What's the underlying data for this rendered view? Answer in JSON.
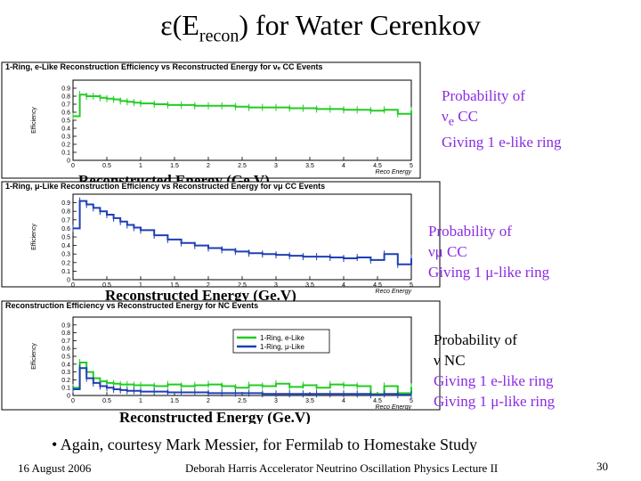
{
  "title": {
    "prefix": "ε(E",
    "sub": "recon",
    "suffix": ") for Water Cerenkov"
  },
  "chart_data": [
    {
      "type": "line",
      "title": "1-Ring, e-Like Reconstruction Efficiency vs Reconstructed Energy for νₑ CC Events",
      "ylabel": "Efficiency",
      "xlabel_small": "Reco Energy",
      "xlabel_big": "Reconstructed Energy (Ge.V)",
      "xlim": [
        0,
        5
      ],
      "ylim": [
        0,
        1
      ],
      "xticks": [
        "0",
        "0.5",
        "1",
        "1.5",
        "2",
        "2.5",
        "3",
        "3.5",
        "4",
        "4.5",
        "5"
      ],
      "yticks": [
        "0",
        "0.1",
        "0.2",
        "0.3",
        "0.4",
        "0.5",
        "0.6",
        "0.7",
        "0.8",
        "0.9"
      ],
      "series": [
        {
          "color": "#22cc22",
          "x": [
            0,
            0.1,
            0.2,
            0.3,
            0.4,
            0.5,
            0.6,
            0.7,
            0.8,
            0.9,
            1.0,
            1.2,
            1.4,
            1.6,
            1.8,
            2.0,
            2.2,
            2.4,
            2.6,
            2.8,
            3.0,
            3.2,
            3.4,
            3.6,
            3.8,
            4.0,
            4.2,
            4.4,
            4.6,
            4.8,
            5.0
          ],
          "y": [
            0.55,
            0.82,
            0.8,
            0.8,
            0.78,
            0.77,
            0.76,
            0.74,
            0.73,
            0.72,
            0.71,
            0.7,
            0.69,
            0.69,
            0.68,
            0.68,
            0.68,
            0.67,
            0.66,
            0.66,
            0.66,
            0.65,
            0.65,
            0.64,
            0.64,
            0.63,
            0.63,
            0.62,
            0.63,
            0.58,
            0.62
          ]
        }
      ]
    },
    {
      "type": "line",
      "title": "1-Ring, μ-Like Reconstruction Efficiency vs Reconstructed Energy for νμ CC Events",
      "ylabel": "Efficiency",
      "xlabel_small": "Reco Energy",
      "xlabel_big": "Reconstructed Energy (Ge.V)",
      "xlim": [
        0,
        5
      ],
      "ylim": [
        0,
        1
      ],
      "xticks": [
        "0",
        "0.5",
        "1",
        "1.5",
        "2",
        "2.5",
        "3",
        "3.5",
        "4",
        "4.5",
        "5"
      ],
      "yticks": [
        "0",
        "0.1",
        "0.2",
        "0.3",
        "0.4",
        "0.5",
        "0.6",
        "0.7",
        "0.8",
        "0.9"
      ],
      "series": [
        {
          "color": "#1f3fb5",
          "x": [
            0,
            0.1,
            0.2,
            0.3,
            0.4,
            0.5,
            0.6,
            0.7,
            0.8,
            0.9,
            1.0,
            1.2,
            1.4,
            1.6,
            1.8,
            2.0,
            2.2,
            2.4,
            2.6,
            2.8,
            3.0,
            3.2,
            3.4,
            3.6,
            3.8,
            4.0,
            4.2,
            4.4,
            4.6,
            4.8,
            5.0
          ],
          "y": [
            0.6,
            0.92,
            0.88,
            0.84,
            0.8,
            0.76,
            0.72,
            0.68,
            0.64,
            0.61,
            0.58,
            0.52,
            0.47,
            0.43,
            0.4,
            0.37,
            0.35,
            0.33,
            0.31,
            0.3,
            0.29,
            0.28,
            0.27,
            0.27,
            0.26,
            0.25,
            0.26,
            0.23,
            0.3,
            0.18,
            0.25
          ]
        }
      ]
    },
    {
      "type": "line",
      "title": "Reconstruction Efficiency vs Reconstructed Energy for NC Events",
      "ylabel": "Efficiency",
      "xlabel_small": "Reco Energy",
      "xlabel_big": "Reconstructed Energy (Ge.V)",
      "xlim": [
        0,
        5
      ],
      "ylim": [
        0,
        1
      ],
      "xticks": [
        "0",
        "0.5",
        "1",
        "1.5",
        "2",
        "2.5",
        "3",
        "3.5",
        "4",
        "4.5",
        "5"
      ],
      "yticks": [
        "0",
        "0.1",
        "0.2",
        "0.3",
        "0.4",
        "0.5",
        "0.6",
        "0.7",
        "0.8",
        "0.9"
      ],
      "legend": {
        "placement": "top-right",
        "entries": [
          "1-Ring, e-Like",
          "1-Ring, μ-Like"
        ]
      },
      "series": [
        {
          "name": "1-Ring, e-Like",
          "color": "#22cc22",
          "x": [
            0,
            0.1,
            0.2,
            0.3,
            0.4,
            0.5,
            0.6,
            0.7,
            0.8,
            0.9,
            1.0,
            1.2,
            1.4,
            1.6,
            1.8,
            2.0,
            2.2,
            2.4,
            2.6,
            2.8,
            3.0,
            3.2,
            3.4,
            3.6,
            3.8,
            4.0,
            4.2,
            4.4,
            4.6,
            4.8,
            5.0
          ],
          "y": [
            0.1,
            0.42,
            0.3,
            0.22,
            0.18,
            0.16,
            0.15,
            0.14,
            0.14,
            0.13,
            0.13,
            0.12,
            0.14,
            0.12,
            0.13,
            0.14,
            0.12,
            0.1,
            0.13,
            0.12,
            0.15,
            0.11,
            0.13,
            0.1,
            0.14,
            0.13,
            0.12,
            0.02,
            0.12,
            0.03,
            0.11
          ]
        },
        {
          "name": "1-Ring, μ-Like",
          "color": "#1f3fb5",
          "x": [
            0,
            0.1,
            0.2,
            0.3,
            0.4,
            0.5,
            0.6,
            0.7,
            0.8,
            0.9,
            1.0,
            1.2,
            1.4,
            1.6,
            1.8,
            2.0,
            2.2,
            2.4,
            2.6,
            2.8,
            3.0,
            3.2,
            3.4,
            3.6,
            3.8,
            4.0,
            4.2,
            4.4,
            4.6,
            4.8,
            5.0
          ],
          "y": [
            0.08,
            0.35,
            0.22,
            0.16,
            0.12,
            0.1,
            0.08,
            0.07,
            0.06,
            0.06,
            0.05,
            0.05,
            0.04,
            0.04,
            0.04,
            0.03,
            0.03,
            0.03,
            0.03,
            0.02,
            0.02,
            0.02,
            0.02,
            0.02,
            0.02,
            0.02,
            0.02,
            0.01,
            0.02,
            0.01,
            0.01
          ]
        }
      ]
    }
  ],
  "captions": {
    "c1": {
      "line1": "Probability of",
      "line2_prefix": "ν",
      "line2_sub": "e",
      "line2_suffix": " CC",
      "line3": "Giving 1 e-like ring"
    },
    "c2": {
      "line1": "Probability of",
      "line2": "νμ CC",
      "line3": "Giving 1 μ-like ring"
    },
    "c3": {
      "line1": "Probability of",
      "line2": "ν NC",
      "line3": "Giving 1 e-like ring",
      "line4": "Giving 1 μ-like ring"
    }
  },
  "bullet": "•   Again, courtesy Mark Messier, for Fermilab to Homestake Study",
  "footer": {
    "date": "16 August 2006",
    "center": "Deborah Harris  Accelerator Neutrino Oscillation Physics Lecture II",
    "page": "30"
  }
}
